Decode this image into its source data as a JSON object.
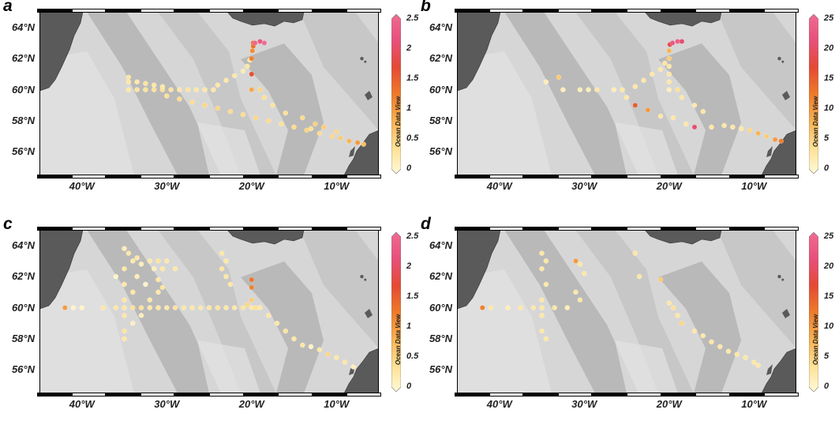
{
  "figure": {
    "map_extent": {
      "lon": [
        -45,
        -5
      ],
      "lat": [
        54.5,
        65
      ]
    },
    "lat_ticks": [
      {
        "value": 64,
        "label": "64°N"
      },
      {
        "value": 62,
        "label": "62°N"
      },
      {
        "value": 60,
        "label": "60°N"
      },
      {
        "value": 58,
        "label": "58°N"
      },
      {
        "value": 56,
        "label": "56°N"
      }
    ],
    "lon_ticks": [
      {
        "value": -40,
        "label": "40°W"
      },
      {
        "value": -30,
        "label": "30°W"
      },
      {
        "value": -20,
        "label": "20°W"
      },
      {
        "value": -10,
        "label": "10°W"
      }
    ],
    "watermark": "Ocean Data View",
    "colors": {
      "land": "#5a5a5a",
      "ocean_light": "#d6d6d6",
      "ocean_mid": "#bcbcbc",
      "ocean_dark": "#a3a3a3",
      "colormap": [
        "#fff9d8",
        "#fde093",
        "#f8b050",
        "#ee7a2a",
        "#e34a35",
        "#e7507a",
        "#ef6c92"
      ]
    }
  },
  "panels": [
    {
      "letter": "a",
      "vmax": 2.5,
      "cbar_ticks": [
        "2.5",
        "2",
        "1.5",
        "1",
        "0.5",
        "0"
      ],
      "cbar_tick_values": [
        2.5,
        2,
        1.5,
        1,
        0.5,
        0
      ],
      "points": [
        [
          -34.5,
          60.8,
          0.35
        ],
        [
          -34.5,
          60.5,
          0.3
        ],
        [
          -34.5,
          60.0,
          0.3
        ],
        [
          -33.5,
          60.0,
          0.35
        ],
        [
          -32.5,
          60.0,
          0.35
        ],
        [
          -31.5,
          60.0,
          0.4
        ],
        [
          -30.5,
          60.0,
          0.4
        ],
        [
          -29.5,
          60.0,
          0.35
        ],
        [
          -28.5,
          60.0,
          0.3
        ],
        [
          -27.5,
          60.0,
          0.35
        ],
        [
          -26.5,
          60.0,
          0.3
        ],
        [
          -25.5,
          60.0,
          0.3
        ],
        [
          -24.5,
          60.0,
          0.3
        ],
        [
          -33.5,
          60.5,
          0.3
        ],
        [
          -32.5,
          60.4,
          0.35
        ],
        [
          -31.5,
          60.3,
          0.3
        ],
        [
          -30.5,
          60.2,
          0.3
        ],
        [
          -24.0,
          60.3,
          0.3
        ],
        [
          -23.0,
          60.6,
          0.3
        ],
        [
          -22.0,
          60.9,
          0.3
        ],
        [
          -21.0,
          61.2,
          0.25
        ],
        [
          -20.5,
          61.5,
          0.3
        ],
        [
          -20.2,
          61.9,
          0.3
        ],
        [
          -30.0,
          59.6,
          0.4
        ],
        [
          -28.5,
          59.4,
          0.45
        ],
        [
          -27.0,
          59.2,
          0.45
        ],
        [
          -25.5,
          59.0,
          0.5
        ],
        [
          -24.0,
          58.8,
          0.5
        ],
        [
          -22.5,
          58.6,
          0.45
        ],
        [
          -21.0,
          58.4,
          0.45
        ],
        [
          -19.5,
          58.2,
          0.5
        ],
        [
          -18.0,
          58.0,
          0.45
        ],
        [
          -16.5,
          57.8,
          0.4
        ],
        [
          -15.0,
          57.6,
          0.45
        ],
        [
          -13.5,
          57.4,
          0.5
        ],
        [
          -12.0,
          57.2,
          0.45
        ],
        [
          -10.5,
          57.0,
          0.5
        ],
        [
          -9.5,
          56.9,
          0.6
        ],
        [
          -8.5,
          56.7,
          0.8
        ],
        [
          -7.5,
          56.6,
          1.0
        ],
        [
          -6.8,
          56.5,
          0.7
        ],
        [
          -20.0,
          60.0,
          0.9
        ],
        [
          -20.0,
          61.0,
          1.6
        ],
        [
          -20.0,
          62.0,
          1.2
        ],
        [
          -19.9,
          62.5,
          1.1
        ],
        [
          -19.8,
          63.0,
          1.4
        ],
        [
          -19.8,
          62.8,
          1.3
        ],
        [
          -19.6,
          63.0,
          2.4
        ],
        [
          -19.0,
          63.1,
          2.2
        ],
        [
          -18.5,
          63.0,
          2.5
        ],
        [
          -19.0,
          60.0,
          0.5
        ],
        [
          -18.5,
          59.5,
          0.4
        ],
        [
          -17.5,
          59.0,
          0.35
        ],
        [
          -16.0,
          58.5,
          0.4
        ],
        [
          -14.0,
          58.2,
          0.45
        ],
        [
          -12.5,
          57.8,
          0.55
        ],
        [
          -11.5,
          57.6,
          0.6
        ],
        [
          -10.0,
          57.3,
          0.5
        ],
        [
          -13.0,
          57.5,
          0.4
        ]
      ]
    },
    {
      "letter": "b",
      "vmax": 25,
      "cbar_ticks": [
        "25",
        "20",
        "15",
        "10",
        "5",
        "0"
      ],
      "cbar_tick_values": [
        25,
        20,
        15,
        10,
        5,
        0
      ],
      "points": [
        [
          -34.5,
          60.5,
          2
        ],
        [
          -33.0,
          60.8,
          6
        ],
        [
          -32.5,
          60.0,
          2
        ],
        [
          -30.5,
          60.0,
          2
        ],
        [
          -29.5,
          60.0,
          2
        ],
        [
          -28.5,
          60.0,
          3
        ],
        [
          -26.5,
          60.0,
          2
        ],
        [
          -25.5,
          60.0,
          3
        ],
        [
          -25.0,
          59.5,
          3
        ],
        [
          -24.0,
          59.0,
          15
        ],
        [
          -22.5,
          58.7,
          10
        ],
        [
          -21.0,
          58.3,
          3
        ],
        [
          -19.5,
          58.2,
          3
        ],
        [
          -18.0,
          57.8,
          3
        ],
        [
          -17.0,
          57.6,
          20
        ],
        [
          -15.0,
          57.6,
          3
        ],
        [
          -13.5,
          57.7,
          3
        ],
        [
          -12.5,
          57.6,
          3
        ],
        [
          -11.5,
          57.5,
          3
        ],
        [
          -10.5,
          57.4,
          5
        ],
        [
          -9.5,
          57.2,
          8
        ],
        [
          -8.5,
          57.0,
          6
        ],
        [
          -7.5,
          56.8,
          10
        ],
        [
          -6.8,
          56.7,
          12
        ],
        [
          -24.0,
          60.2,
          3
        ],
        [
          -23.0,
          60.6,
          3
        ],
        [
          -22.0,
          61.0,
          3
        ],
        [
          -21.0,
          61.3,
          3
        ],
        [
          -20.5,
          61.7,
          3
        ],
        [
          -20.0,
          60.0,
          2
        ],
        [
          -20.0,
          60.5,
          3
        ],
        [
          -20.0,
          61.0,
          3
        ],
        [
          -20.0,
          61.5,
          3
        ],
        [
          -20.0,
          62.0,
          6
        ],
        [
          -20.0,
          62.5,
          8
        ],
        [
          -19.9,
          62.9,
          18
        ],
        [
          -19.6,
          63.0,
          22
        ],
        [
          -19.0,
          63.1,
          23
        ],
        [
          -18.5,
          63.1,
          20
        ],
        [
          -19.0,
          60.0,
          4
        ],
        [
          -18.5,
          59.5,
          3
        ],
        [
          -17.0,
          59.0,
          3
        ],
        [
          -16.0,
          58.6,
          3
        ]
      ]
    },
    {
      "letter": "c",
      "vmax": 2.5,
      "cbar_ticks": [
        "2.5",
        "2",
        "1.5",
        "1",
        "0.5",
        "0"
      ],
      "cbar_tick_values": [
        2.5,
        2,
        1.5,
        1,
        0.5,
        0
      ],
      "points": [
        [
          -42.0,
          60.0,
          1.0
        ],
        [
          -41.0,
          60.0,
          0.1
        ],
        [
          -40.0,
          60.0,
          0.1
        ],
        [
          -37.5,
          60.0,
          0.3
        ],
        [
          -36.0,
          60.0,
          0.3
        ],
        [
          -35.0,
          60.0,
          0.3
        ],
        [
          -34.0,
          60.0,
          0.4
        ],
        [
          -33.0,
          60.0,
          0.4
        ],
        [
          -32.0,
          60.0,
          0.3
        ],
        [
          -31.0,
          60.0,
          0.3
        ],
        [
          -30.0,
          60.0,
          0.3
        ],
        [
          -29.0,
          60.0,
          0.35
        ],
        [
          -28.0,
          60.0,
          0.3
        ],
        [
          -27.0,
          60.0,
          0.3
        ],
        [
          -26.0,
          60.0,
          0.3
        ],
        [
          -25.0,
          60.0,
          0.3
        ],
        [
          -24.0,
          60.0,
          0.35
        ],
        [
          -23.0,
          60.0,
          0.3
        ],
        [
          -22.0,
          60.0,
          0.3
        ],
        [
          -21.0,
          60.0,
          0.35
        ],
        [
          -20.0,
          60.0,
          0.3
        ],
        [
          -35.0,
          63.8,
          0.2
        ],
        [
          -34.5,
          63.5,
          0.3
        ],
        [
          -34.0,
          63.0,
          0.3
        ],
        [
          -33.5,
          63.2,
          0.3
        ],
        [
          -33.0,
          62.8,
          0.2
        ],
        [
          -32.0,
          63.0,
          0.3
        ],
        [
          -31.5,
          62.5,
          0.2
        ],
        [
          -31.0,
          63.0,
          0.35
        ],
        [
          -30.5,
          62.5,
          0.3
        ],
        [
          -30.0,
          63.0,
          0.3
        ],
        [
          -35.0,
          62.5,
          0.3
        ],
        [
          -35.0,
          61.5,
          0.3
        ],
        [
          -35.0,
          60.5,
          0.3
        ],
        [
          -35.0,
          59.5,
          0.3
        ],
        [
          -35.0,
          58.5,
          0.35
        ],
        [
          -35.0,
          58.0,
          0.3
        ],
        [
          -34.0,
          59.0,
          0.15
        ],
        [
          -33.0,
          59.5,
          0.2
        ],
        [
          -32.0,
          60.5,
          0.3
        ],
        [
          -31.0,
          61.0,
          0.3
        ],
        [
          -31.0,
          61.8,
          0.3
        ],
        [
          -30.5,
          61.3,
          0.35
        ],
        [
          -29.0,
          62.5,
          0.3
        ],
        [
          -34.0,
          61.0,
          0.3
        ],
        [
          -33.5,
          62.0,
          0.2
        ],
        [
          -23.5,
          63.5,
          0.3
        ],
        [
          -23.0,
          63.0,
          0.3
        ],
        [
          -23.5,
          62.5,
          0.35
        ],
        [
          -23.0,
          62.0,
          0.3
        ],
        [
          -22.5,
          61.5,
          0.3
        ],
        [
          -20.0,
          61.8,
          1.3
        ],
        [
          -20.0,
          61.3,
          1.2
        ],
        [
          -20.0,
          60.5,
          0.6
        ],
        [
          -20.5,
          60.2,
          0.5
        ],
        [
          -19.5,
          60.0,
          0.4
        ],
        [
          -19.0,
          60.0,
          0.3
        ],
        [
          -18.0,
          59.5,
          0.3
        ],
        [
          -17.0,
          59.0,
          0.3
        ],
        [
          -16.0,
          58.5,
          0.35
        ],
        [
          -15.0,
          58.0,
          0.3
        ],
        [
          -14.0,
          57.6,
          0.3
        ],
        [
          -13.0,
          57.5,
          0.1
        ],
        [
          -12.0,
          57.3,
          0.3
        ],
        [
          -11.0,
          57.0,
          0.5
        ],
        [
          -10.0,
          56.8,
          0.3
        ],
        [
          -9.0,
          56.5,
          0.3
        ],
        [
          -8.0,
          56.2,
          0.2
        ],
        [
          -36.0,
          62.0,
          0.1
        ],
        [
          -32.5,
          61.5,
          0.1
        ]
      ]
    },
    {
      "letter": "d",
      "vmax": 25,
      "cbar_ticks": [
        "25",
        "20",
        "15",
        "10",
        "5",
        "0"
      ],
      "cbar_tick_values": [
        25,
        20,
        15,
        10,
        5,
        0
      ],
      "points": [
        [
          -42.0,
          60.0,
          12
        ],
        [
          -41.0,
          60.0,
          3
        ],
        [
          -39.0,
          60.0,
          2
        ],
        [
          -37.5,
          60.0,
          3
        ],
        [
          -36.0,
          60.0,
          3
        ],
        [
          -35.0,
          60.0,
          3
        ],
        [
          -33.5,
          60.0,
          3
        ],
        [
          -32.0,
          60.0,
          2
        ],
        [
          -35.0,
          63.5,
          3
        ],
        [
          -34.5,
          63.0,
          3
        ],
        [
          -35.0,
          62.5,
          3
        ],
        [
          -34.5,
          61.5,
          3
        ],
        [
          -35.0,
          60.5,
          3
        ],
        [
          -35.0,
          59.5,
          3
        ],
        [
          -35.0,
          58.5,
          3
        ],
        [
          -34.5,
          58.0,
          3
        ],
        [
          -31.0,
          63.0,
          10
        ],
        [
          -30.5,
          62.8,
          3
        ],
        [
          -30.0,
          62.2,
          3
        ],
        [
          -31.0,
          61.0,
          3
        ],
        [
          -30.5,
          60.5,
          3
        ],
        [
          -24.0,
          63.5,
          3
        ],
        [
          -23.5,
          62.0,
          3
        ],
        [
          -21.0,
          61.8,
          6
        ],
        [
          -20.0,
          60.3,
          3
        ],
        [
          -19.5,
          60.0,
          4
        ],
        [
          -19.0,
          59.5,
          3
        ],
        [
          -18.5,
          59.0,
          5
        ],
        [
          -17.0,
          58.5,
          3
        ],
        [
          -16.0,
          58.2,
          3
        ],
        [
          -15.0,
          57.8,
          3
        ],
        [
          -14.0,
          57.5,
          3
        ],
        [
          -13.0,
          57.2,
          3
        ],
        [
          -12.0,
          57.0,
          3
        ],
        [
          -11.0,
          56.8,
          3
        ],
        [
          -10.0,
          56.5,
          3
        ],
        [
          -9.5,
          56.3,
          3
        ]
      ]
    }
  ]
}
